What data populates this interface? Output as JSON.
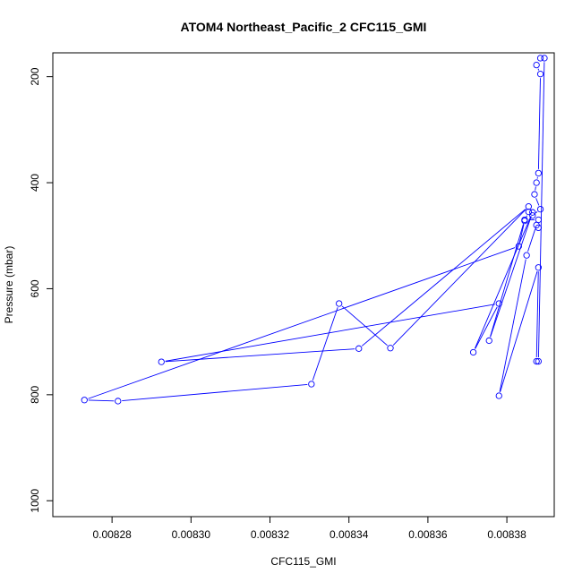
{
  "chart_data": {
    "type": "line",
    "title": "ATOM4 Northeast_Pacific_2 CFC115_GMI",
    "xlabel": "CFC115_GMI",
    "ylabel": "Pressure (mbar)",
    "xlim": [
      0.008265,
      0.008392
    ],
    "ylim": [
      1030,
      155
    ],
    "y_reversed": true,
    "x_ticks": [
      0.00828,
      0.0083,
      0.00832,
      0.00834,
      0.00836,
      0.00838
    ],
    "x_tick_labels": [
      "0.00828",
      "0.00830",
      "0.00832",
      "0.00834",
      "0.00836",
      "0.00838"
    ],
    "y_ticks": [
      200,
      400,
      600,
      800,
      1000
    ],
    "y_tick_labels": [
      "200",
      "400",
      "600",
      "800",
      "1000"
    ],
    "series": [
      {
        "color": "#0000ff",
        "marker": "open-circle",
        "points": [
          [
            0.0083885,
            165
          ],
          [
            0.0083875,
            178
          ],
          [
            0.0083885,
            195
          ],
          [
            0.008388,
            382
          ],
          [
            0.0083875,
            400
          ],
          [
            0.008387,
            422
          ],
          [
            0.0083885,
            450
          ],
          [
            0.0083865,
            462
          ],
          [
            0.0083855,
            455
          ],
          [
            0.0083845,
            472
          ],
          [
            0.008383,
            520
          ],
          [
            0.008273,
            810
          ],
          [
            0.0082815,
            812
          ],
          [
            0.0083305,
            780
          ],
          [
            0.0083375,
            628
          ],
          [
            0.0083505,
            712
          ],
          [
            0.0083855,
            445
          ],
          [
            0.0083425,
            713
          ],
          [
            0.0082925,
            738
          ],
          [
            0.008378,
            628
          ],
          [
            0.0083715,
            720
          ],
          [
            0.0083865,
            456
          ],
          [
            0.0083755,
            698
          ],
          [
            0.0083845,
            470
          ],
          [
            0.008388,
            470
          ],
          [
            0.008388,
            485
          ],
          [
            0.0083875,
            480
          ],
          [
            0.008385,
            537
          ],
          [
            0.008378,
            802
          ],
          [
            0.008388,
            560
          ],
          [
            0.0083875,
            737
          ],
          [
            0.008388,
            737
          ],
          [
            0.0083895,
            165
          ]
        ]
      }
    ]
  }
}
